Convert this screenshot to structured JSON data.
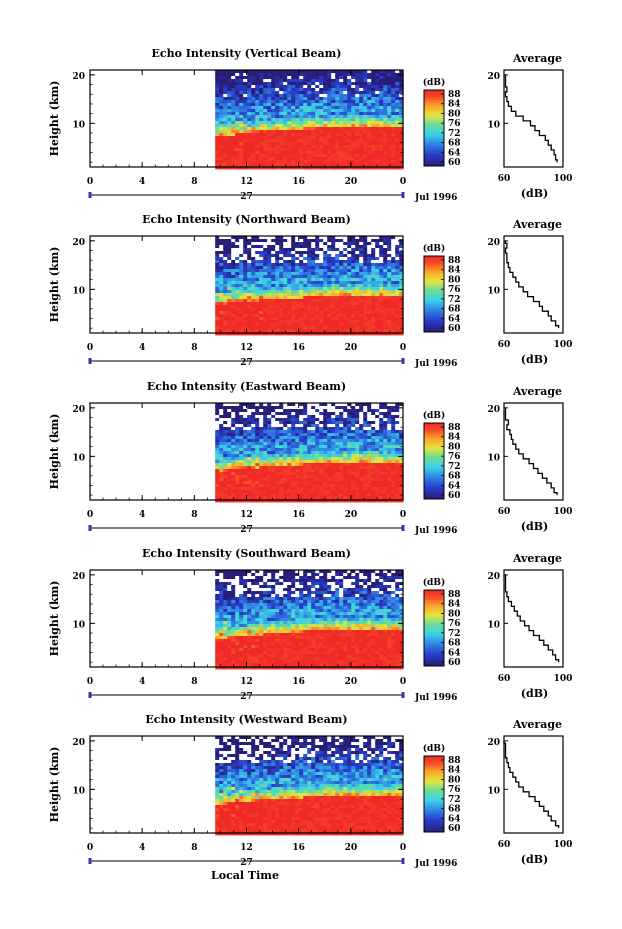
{
  "figure": {
    "xlabel": "Local Time",
    "date_label": "Jul 1996",
    "day_label": "27"
  },
  "chart_data": [
    {
      "type": "heatmap",
      "title": "Echo Intensity (Vertical Beam)",
      "ylabel": "Height (km)",
      "x_ticks": [
        "0",
        "4",
        "8",
        "12",
        "16",
        "20",
        "0"
      ],
      "y_ticks": [
        "10",
        "20"
      ],
      "x_range_hours": [
        0,
        24
      ],
      "y_range_km": [
        1,
        21
      ],
      "data_start_hour": 9.6,
      "colorbar": {
        "label": "(dB)",
        "ticks": [
          "88",
          "84",
          "80",
          "76",
          "72",
          "68",
          "64",
          "60"
        ],
        "range": [
          58,
          90
        ]
      },
      "average": {
        "title": "Average",
        "xlabel": "(dB)",
        "x_ticks": [
          "60",
          "100"
        ],
        "xlim": [
          60,
          100
        ],
        "profile": [
          [
            2,
            96
          ],
          [
            3,
            95
          ],
          [
            4,
            94
          ],
          [
            5,
            92
          ],
          [
            6,
            90
          ],
          [
            7,
            88
          ],
          [
            8,
            84
          ],
          [
            9,
            81
          ],
          [
            10,
            78
          ],
          [
            11,
            73
          ],
          [
            12,
            68
          ],
          [
            13,
            65
          ],
          [
            14,
            63
          ],
          [
            15,
            62
          ],
          [
            16,
            61
          ],
          [
            17,
            62
          ],
          [
            18,
            61
          ],
          [
            19,
            61
          ],
          [
            20,
            61
          ]
        ]
      }
    },
    {
      "type": "heatmap",
      "title": "Echo Intensity (Northward Beam)",
      "ylabel": "Height (km)",
      "x_ticks": [
        "0",
        "4",
        "8",
        "12",
        "16",
        "20",
        "0"
      ],
      "y_ticks": [
        "10",
        "20"
      ],
      "x_range_hours": [
        0,
        24
      ],
      "y_range_km": [
        1,
        21
      ],
      "data_start_hour": 9.6,
      "colorbar": {
        "label": "(dB)",
        "ticks": [
          "88",
          "84",
          "80",
          "76",
          "72",
          "68",
          "64",
          "60"
        ],
        "range": [
          58,
          90
        ]
      },
      "average": {
        "title": "Average",
        "xlabel": "(dB)",
        "x_ticks": [
          "60",
          "100"
        ],
        "xlim": [
          60,
          100
        ],
        "profile": [
          [
            2,
            97
          ],
          [
            3,
            95
          ],
          [
            4,
            92
          ],
          [
            5,
            90
          ],
          [
            6,
            86
          ],
          [
            7,
            84
          ],
          [
            8,
            80
          ],
          [
            9,
            76
          ],
          [
            10,
            73
          ],
          [
            11,
            70
          ],
          [
            12,
            68
          ],
          [
            13,
            66
          ],
          [
            14,
            64
          ],
          [
            15,
            63
          ],
          [
            16,
            62
          ],
          [
            17,
            62
          ],
          [
            18,
            61
          ],
          [
            19,
            62
          ],
          [
            20,
            61
          ]
        ]
      }
    },
    {
      "type": "heatmap",
      "title": "Echo Intensity (Eastward Beam)",
      "ylabel": "Height (km)",
      "x_ticks": [
        "0",
        "4",
        "8",
        "12",
        "16",
        "20",
        "0"
      ],
      "y_ticks": [
        "10",
        "20"
      ],
      "x_range_hours": [
        0,
        24
      ],
      "y_range_km": [
        1,
        21
      ],
      "data_start_hour": 9.6,
      "colorbar": {
        "label": "(dB)",
        "ticks": [
          "88",
          "84",
          "80",
          "76",
          "72",
          "68",
          "64",
          "60"
        ],
        "range": [
          58,
          90
        ]
      },
      "average": {
        "title": "Average",
        "xlabel": "(dB)",
        "x_ticks": [
          "60",
          "100"
        ],
        "xlim": [
          60,
          100
        ],
        "profile": [
          [
            2,
            96
          ],
          [
            3,
            94
          ],
          [
            4,
            92
          ],
          [
            5,
            89
          ],
          [
            6,
            86
          ],
          [
            7,
            83
          ],
          [
            8,
            80
          ],
          [
            9,
            77
          ],
          [
            10,
            73
          ],
          [
            11,
            70
          ],
          [
            12,
            68
          ],
          [
            13,
            66
          ],
          [
            14,
            65
          ],
          [
            15,
            64
          ],
          [
            16,
            62
          ],
          [
            17,
            63
          ],
          [
            18,
            61
          ],
          [
            19,
            61
          ],
          [
            20,
            61
          ]
        ]
      }
    },
    {
      "type": "heatmap",
      "title": "Echo Intensity (Southward Beam)",
      "ylabel": "Height (km)",
      "x_ticks": [
        "0",
        "4",
        "8",
        "12",
        "16",
        "20",
        "0"
      ],
      "y_ticks": [
        "10",
        "20"
      ],
      "x_range_hours": [
        0,
        24
      ],
      "y_range_km": [
        1,
        21
      ],
      "data_start_hour": 9.6,
      "colorbar": {
        "label": "(dB)",
        "ticks": [
          "88",
          "84",
          "80",
          "76",
          "72",
          "68",
          "64",
          "60"
        ],
        "range": [
          58,
          90
        ]
      },
      "average": {
        "title": "Average",
        "xlabel": "(dB)",
        "x_ticks": [
          "60",
          "100"
        ],
        "xlim": [
          60,
          100
        ],
        "profile": [
          [
            2,
            97
          ],
          [
            3,
            95
          ],
          [
            4,
            93
          ],
          [
            5,
            90
          ],
          [
            6,
            87
          ],
          [
            7,
            84
          ],
          [
            8,
            80
          ],
          [
            9,
            77
          ],
          [
            10,
            74
          ],
          [
            11,
            71
          ],
          [
            12,
            69
          ],
          [
            13,
            67
          ],
          [
            14,
            65
          ],
          [
            15,
            63
          ],
          [
            16,
            62
          ],
          [
            17,
            61
          ],
          [
            18,
            61
          ],
          [
            19,
            61
          ],
          [
            20,
            61
          ]
        ]
      }
    },
    {
      "type": "heatmap",
      "title": "Echo Intensity (Westward Beam)",
      "ylabel": "Height (km)",
      "x_ticks": [
        "0",
        "4",
        "8",
        "12",
        "16",
        "20",
        "0"
      ],
      "y_ticks": [
        "10",
        "20"
      ],
      "x_range_hours": [
        0,
        24
      ],
      "y_range_km": [
        1,
        21
      ],
      "data_start_hour": 9.6,
      "colorbar": {
        "label": "(dB)",
        "ticks": [
          "88",
          "84",
          "80",
          "76",
          "72",
          "68",
          "64",
          "60"
        ],
        "range": [
          58,
          90
        ]
      },
      "average": {
        "title": "Average",
        "xlabel": "(dB)",
        "x_ticks": [
          "60",
          "100"
        ],
        "xlim": [
          60,
          100
        ],
        "profile": [
          [
            2,
            97
          ],
          [
            3,
            95
          ],
          [
            4,
            92
          ],
          [
            5,
            90
          ],
          [
            6,
            87
          ],
          [
            7,
            84
          ],
          [
            8,
            81
          ],
          [
            9,
            77
          ],
          [
            10,
            73
          ],
          [
            11,
            70
          ],
          [
            12,
            68
          ],
          [
            13,
            66
          ],
          [
            14,
            64
          ],
          [
            15,
            63
          ],
          [
            16,
            62
          ],
          [
            17,
            61
          ],
          [
            18,
            61
          ],
          [
            19,
            61
          ],
          [
            20,
            60
          ]
        ]
      }
    }
  ]
}
